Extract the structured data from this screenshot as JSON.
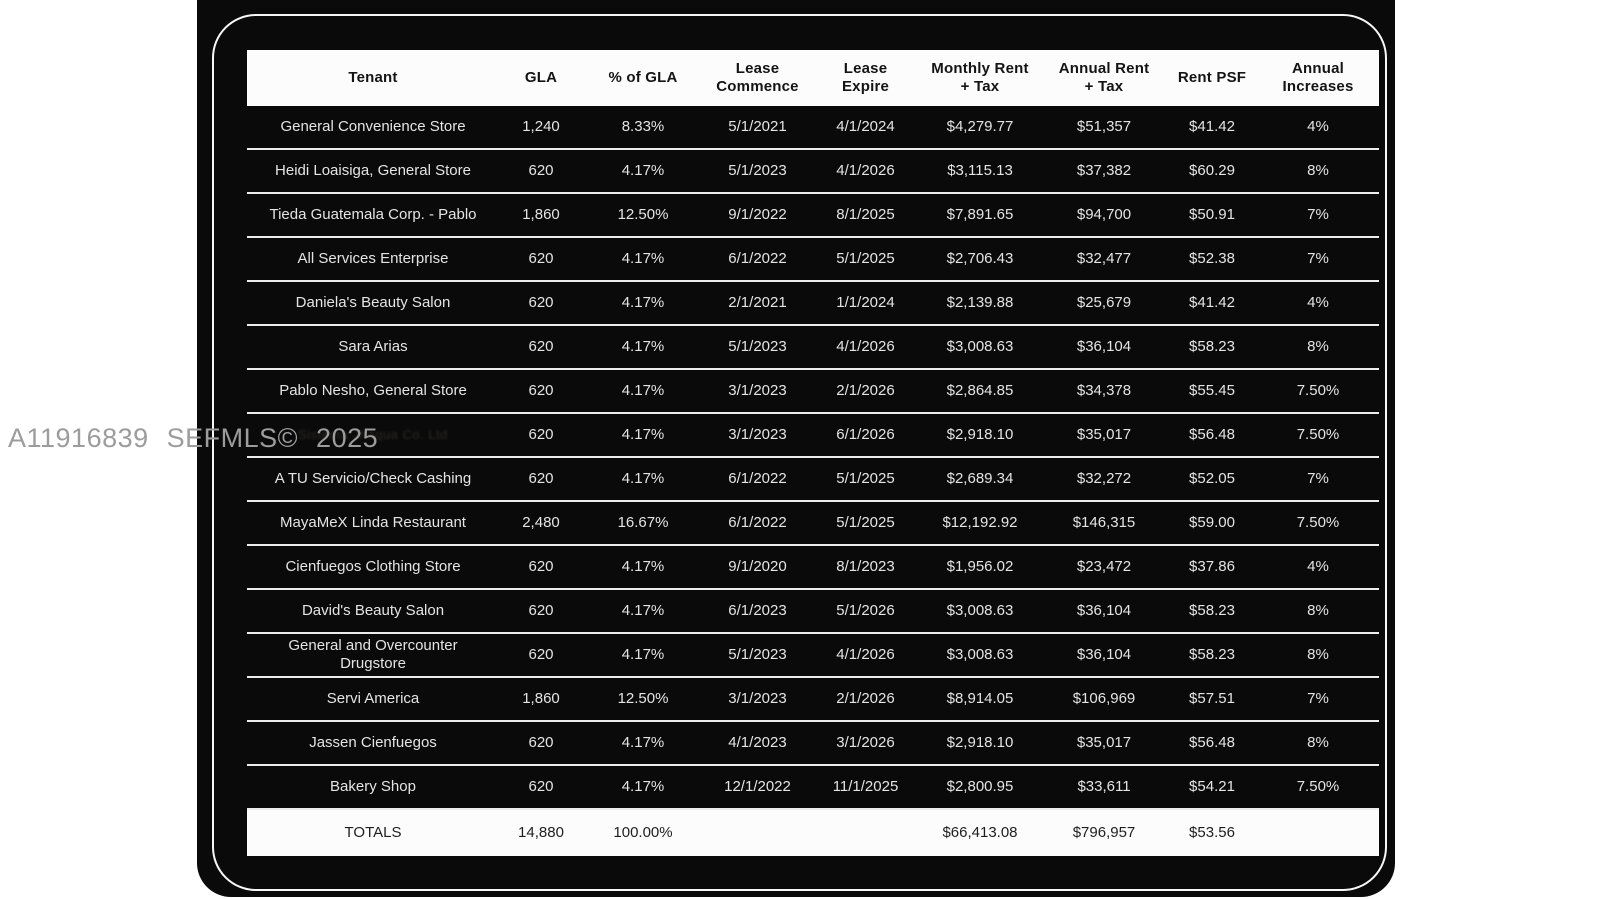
{
  "watermark": {
    "text": "A11916839 SEFMLS© 2025"
  },
  "colors": {
    "page_bg": "#ffffff",
    "card_bg": "#0a0a0a",
    "header_bg": "#fcfcfc",
    "row_text": "#e4e4e4",
    "separator": "#ededed",
    "watermark_gray": "#9c9c9c"
  },
  "table": {
    "column_keys": [
      "tenant",
      "gla",
      "pct",
      "commence",
      "expire",
      "monthly",
      "annual",
      "psf",
      "increases"
    ],
    "headers": [
      "Tenant",
      "GLA",
      "% of GLA",
      "Lease\nCommence",
      "Lease\nExpire",
      "Monthly Rent\n+ Tax",
      "Annual Rent\n+ Tax",
      "Rent PSF",
      "Annual\nIncreases"
    ],
    "rows": [
      {
        "tenant": "General Convenience Store",
        "gla": "1,240",
        "pct": "8.33%",
        "commence": "5/1/2021",
        "expire": "4/1/2024",
        "monthly": "$4,279.77",
        "annual": "$51,357",
        "psf": "$41.42",
        "increases": "4%"
      },
      {
        "tenant": "Heidi Loaisiga, General Store",
        "gla": "620",
        "pct": "4.17%",
        "commence": "5/1/2023",
        "expire": "4/1/2026",
        "monthly": "$3,115.13",
        "annual": "$37,382",
        "psf": "$60.29",
        "increases": "8%"
      },
      {
        "tenant": "Tieda Guatemala Corp. - Pablo",
        "gla": "1,860",
        "pct": "12.50%",
        "commence": "9/1/2022",
        "expire": "8/1/2025",
        "monthly": "$7,891.65",
        "annual": "$94,700",
        "psf": "$50.91",
        "increases": "7%"
      },
      {
        "tenant": "All Services Enterprise",
        "gla": "620",
        "pct": "4.17%",
        "commence": "6/1/2022",
        "expire": "5/1/2025",
        "monthly": "$2,706.43",
        "annual": "$32,477",
        "psf": "$52.38",
        "increases": "7%"
      },
      {
        "tenant": "Daniela's Beauty Salon",
        "gla": "620",
        "pct": "4.17%",
        "commence": "2/1/2021",
        "expire": "1/1/2024",
        "monthly": "$2,139.88",
        "annual": "$25,679",
        "psf": "$41.42",
        "increases": "4%"
      },
      {
        "tenant": "Sara Arias",
        "gla": "620",
        "pct": "4.17%",
        "commence": "5/1/2023",
        "expire": "4/1/2026",
        "monthly": "$3,008.63",
        "annual": "$36,104",
        "psf": "$58.23",
        "increases": "8%"
      },
      {
        "tenant": "Pablo Nesho, General Store",
        "gla": "620",
        "pct": "4.17%",
        "commence": "3/1/2023",
        "expire": "2/1/2026",
        "monthly": "$2,864.85",
        "annual": "$34,378",
        "psf": "$55.45",
        "increases": "7.50%"
      },
      {
        "tenant": "Sistema Jhaqua Co. Ltd",
        "obscured": true,
        "gla": "620",
        "pct": "4.17%",
        "commence": "3/1/2023",
        "expire": "6/1/2026",
        "monthly": "$2,918.10",
        "annual": "$35,017",
        "psf": "$56.48",
        "increases": "7.50%"
      },
      {
        "tenant": "A TU Servicio/Check Cashing",
        "gla": "620",
        "pct": "4.17%",
        "commence": "6/1/2022",
        "expire": "5/1/2025",
        "monthly": "$2,689.34",
        "annual": "$32,272",
        "psf": "$52.05",
        "increases": "7%"
      },
      {
        "tenant": "MayaMeX Linda Restaurant",
        "gla": "2,480",
        "pct": "16.67%",
        "commence": "6/1/2022",
        "expire": "5/1/2025",
        "monthly": "$12,192.92",
        "annual": "$146,315",
        "psf": "$59.00",
        "increases": "7.50%"
      },
      {
        "tenant": "Cienfuegos Clothing Store",
        "gla": "620",
        "pct": "4.17%",
        "commence": "9/1/2020",
        "expire": "8/1/2023",
        "monthly": "$1,956.02",
        "annual": "$23,472",
        "psf": "$37.86",
        "increases": "4%"
      },
      {
        "tenant": "David's Beauty Salon",
        "gla": "620",
        "pct": "4.17%",
        "commence": "6/1/2023",
        "expire": "5/1/2026",
        "monthly": "$3,008.63",
        "annual": "$36,104",
        "psf": "$58.23",
        "increases": "8%"
      },
      {
        "tenant": "General and Overcounter Drugstore",
        "gla": "620",
        "pct": "4.17%",
        "commence": "5/1/2023",
        "expire": "4/1/2026",
        "monthly": "$3,008.63",
        "annual": "$36,104",
        "psf": "$58.23",
        "increases": "8%"
      },
      {
        "tenant": "Servi America",
        "gla": "1,860",
        "pct": "12.50%",
        "commence": "3/1/2023",
        "expire": "2/1/2026",
        "monthly": "$8,914.05",
        "annual": "$106,969",
        "psf": "$57.51",
        "increases": "7%"
      },
      {
        "tenant": "Jassen Cienfuegos",
        "gla": "620",
        "pct": "4.17%",
        "commence": "4/1/2023",
        "expire": "3/1/2026",
        "monthly": "$2,918.10",
        "annual": "$35,017",
        "psf": "$56.48",
        "increases": "8%"
      },
      {
        "tenant": "Bakery Shop",
        "gla": "620",
        "pct": "4.17%",
        "commence": "12/1/2022",
        "expire": "11/1/2025",
        "monthly": "$2,800.95",
        "annual": "$33,611",
        "psf": "$54.21",
        "increases": "7.50%"
      }
    ],
    "totals": {
      "tenant": "TOTALS",
      "gla": "14,880",
      "pct": "100.00%",
      "commence": "",
      "expire": "",
      "monthly": "$66,413.08",
      "annual": "$796,957",
      "psf": "$53.56",
      "increases": ""
    }
  }
}
